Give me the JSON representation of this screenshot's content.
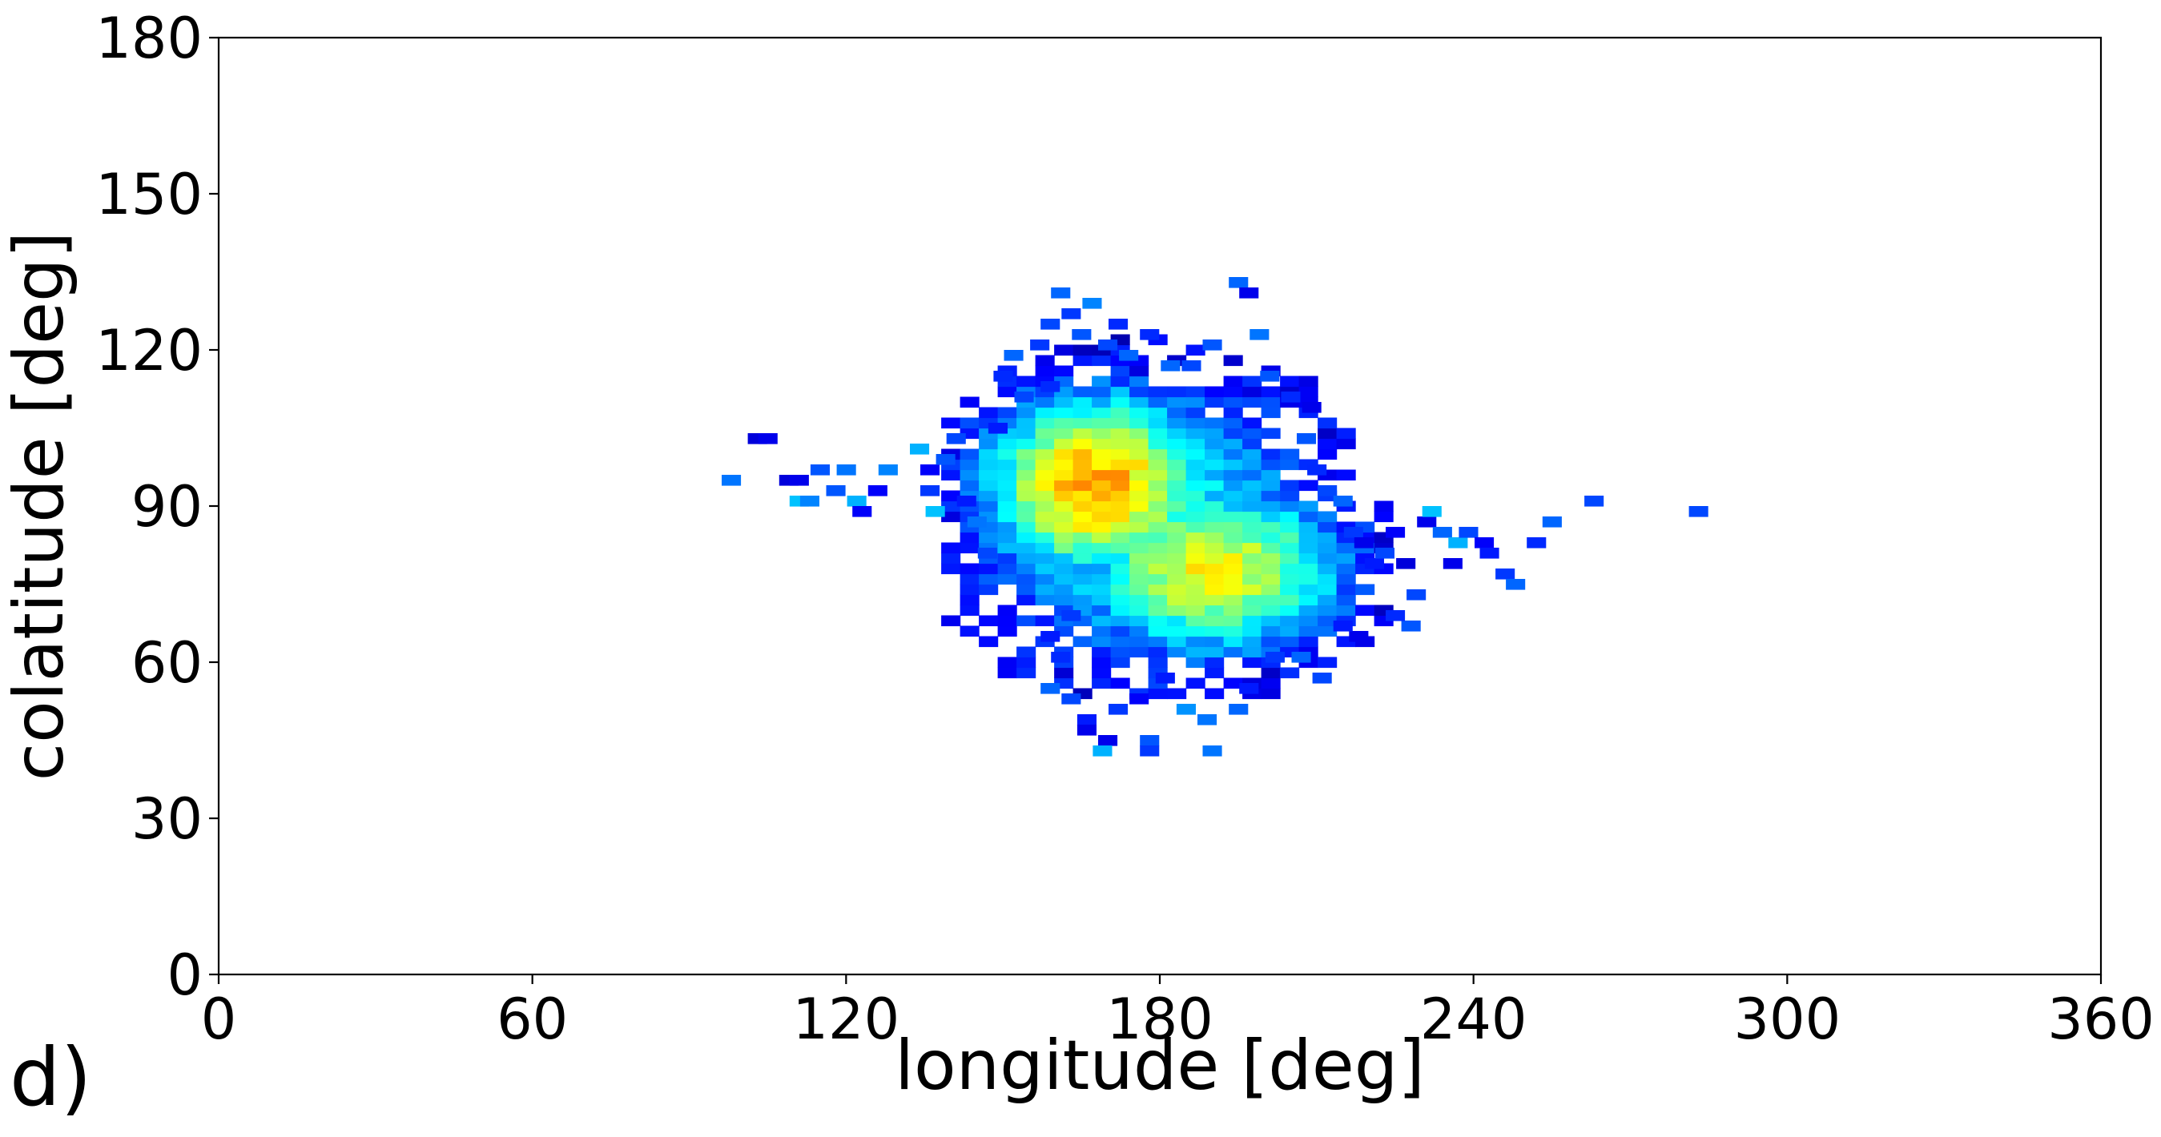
{
  "panel_label": "d)",
  "chart_data": {
    "type": "heatmap",
    "title": "",
    "xlabel": "longitude [deg]",
    "ylabel": "colatitude [deg]",
    "xlim": [
      0,
      360
    ],
    "ylim": [
      0,
      180
    ],
    "xticks": [
      "0",
      "60",
      "120",
      "180",
      "240",
      "300",
      "360"
    ],
    "yticks": [
      "0",
      "30",
      "60",
      "90",
      "120",
      "150",
      "180"
    ],
    "grid": false,
    "legend": "none",
    "bin_size_deg": [
      3.6,
      2.0
    ],
    "colormap": "jet",
    "colormap_stops": [
      "#00007f",
      "#0000ff",
      "#007fff",
      "#00ffff",
      "#7fff7f",
      "#ffff00",
      "#ff7f00"
    ],
    "value_scale": "relative density (0 = lowest occupied bin, 1 = peak)",
    "cells": [
      [
        98,
        95,
        0.32
      ],
      [
        103,
        103,
        0.12
      ],
      [
        105,
        103,
        0.14
      ],
      [
        109,
        95,
        0.12
      ],
      [
        111,
        95,
        0.14
      ],
      [
        111,
        91,
        0.42
      ],
      [
        113,
        91,
        0.34
      ],
      [
        115,
        97,
        0.28
      ],
      [
        118,
        93,
        0.28
      ],
      [
        120,
        97,
        0.32
      ],
      [
        122,
        91,
        0.4
      ],
      [
        123,
        89,
        0.16
      ],
      [
        126,
        93,
        0.16
      ],
      [
        128,
        97,
        0.34
      ],
      [
        134,
        101,
        0.4
      ],
      [
        136,
        93,
        0.24
      ],
      [
        136,
        97,
        0.16
      ],
      [
        137,
        89,
        0.42
      ],
      [
        139,
        99,
        0.28
      ],
      [
        141,
        103,
        0.26
      ],
      [
        143,
        91,
        0.2
      ],
      [
        145,
        87,
        0.32
      ],
      [
        147,
        81,
        0.26
      ],
      [
        149,
        105,
        0.2
      ],
      [
        150,
        115,
        0.22
      ],
      [
        152,
        119,
        0.3
      ],
      [
        154,
        111,
        0.26
      ],
      [
        157,
        121,
        0.24
      ],
      [
        159,
        113,
        0.22
      ],
      [
        159,
        125,
        0.26
      ],
      [
        161,
        131,
        0.3
      ],
      [
        163,
        127,
        0.24
      ],
      [
        165,
        123,
        0.28
      ],
      [
        167,
        129,
        0.34
      ],
      [
        170,
        121,
        0.26
      ],
      [
        172,
        125,
        0.22
      ],
      [
        174,
        119,
        0.3
      ],
      [
        178,
        123,
        0.22
      ],
      [
        182,
        117,
        0.3
      ],
      [
        186,
        117,
        0.26
      ],
      [
        190,
        121,
        0.28
      ],
      [
        195,
        133,
        0.3
      ],
      [
        197,
        131,
        0.14
      ],
      [
        199,
        123,
        0.32
      ],
      [
        201,
        115,
        0.28
      ],
      [
        205,
        111,
        0.22
      ],
      [
        209,
        109,
        0.14
      ],
      [
        208,
        103,
        0.28
      ],
      [
        210,
        97,
        0.22
      ],
      [
        212,
        93,
        0.26
      ],
      [
        215,
        91,
        0.3
      ],
      [
        217,
        85,
        0.24
      ],
      [
        219,
        83,
        0.14
      ],
      [
        221,
        79,
        0.2
      ],
      [
        223,
        81,
        0.26
      ],
      [
        225,
        85,
        0.16
      ],
      [
        227,
        79,
        0.12
      ],
      [
        229,
        73,
        0.26
      ],
      [
        231,
        87,
        0.14
      ],
      [
        232,
        89,
        0.42
      ],
      [
        234,
        85,
        0.3
      ],
      [
        236,
        79,
        0.14
      ],
      [
        237,
        83,
        0.4
      ],
      [
        239,
        85,
        0.26
      ],
      [
        242,
        83,
        0.16
      ],
      [
        243,
        81,
        0.2
      ],
      [
        246,
        77,
        0.24
      ],
      [
        248,
        75,
        0.3
      ],
      [
        252,
        83,
        0.22
      ],
      [
        255,
        87,
        0.3
      ],
      [
        263,
        91,
        0.26
      ],
      [
        283,
        89,
        0.26
      ],
      [
        228,
        67,
        0.28
      ],
      [
        225,
        69,
        0.22
      ],
      [
        218,
        65,
        0.14
      ],
      [
        215,
        67,
        0.2
      ],
      [
        211,
        57,
        0.26
      ],
      [
        207,
        61,
        0.3
      ],
      [
        202,
        61,
        0.24
      ],
      [
        197,
        55,
        0.2
      ],
      [
        195,
        51,
        0.3
      ],
      [
        189,
        49,
        0.32
      ],
      [
        185,
        51,
        0.36
      ],
      [
        181,
        57,
        0.2
      ],
      [
        178,
        45,
        0.28
      ],
      [
        176,
        53,
        0.16
      ],
      [
        172,
        51,
        0.24
      ],
      [
        170,
        45,
        0.14
      ],
      [
        169,
        43,
        0.4
      ],
      [
        166,
        49,
        0.2
      ],
      [
        163,
        53,
        0.26
      ],
      [
        159,
        55,
        0.3
      ],
      [
        161,
        61,
        0.22
      ],
      [
        159,
        65,
        0.2
      ],
      [
        163,
        69,
        0.24
      ],
      [
        190,
        43,
        0.32
      ],
      [
        178,
        43,
        0.24
      ],
      [
        166,
        47,
        0.14
      ]
    ],
    "clusters": [
      {
        "lon": 168,
        "colat": 94,
        "sx": 16,
        "sy": 13,
        "peak": 0.96
      },
      {
        "lon": 190,
        "colat": 78,
        "sx": 19,
        "sy": 12,
        "peak": 0.82
      },
      {
        "lon": 179,
        "colat": 86,
        "sx": 26,
        "sy": 22,
        "peak": 0.52
      }
    ]
  }
}
